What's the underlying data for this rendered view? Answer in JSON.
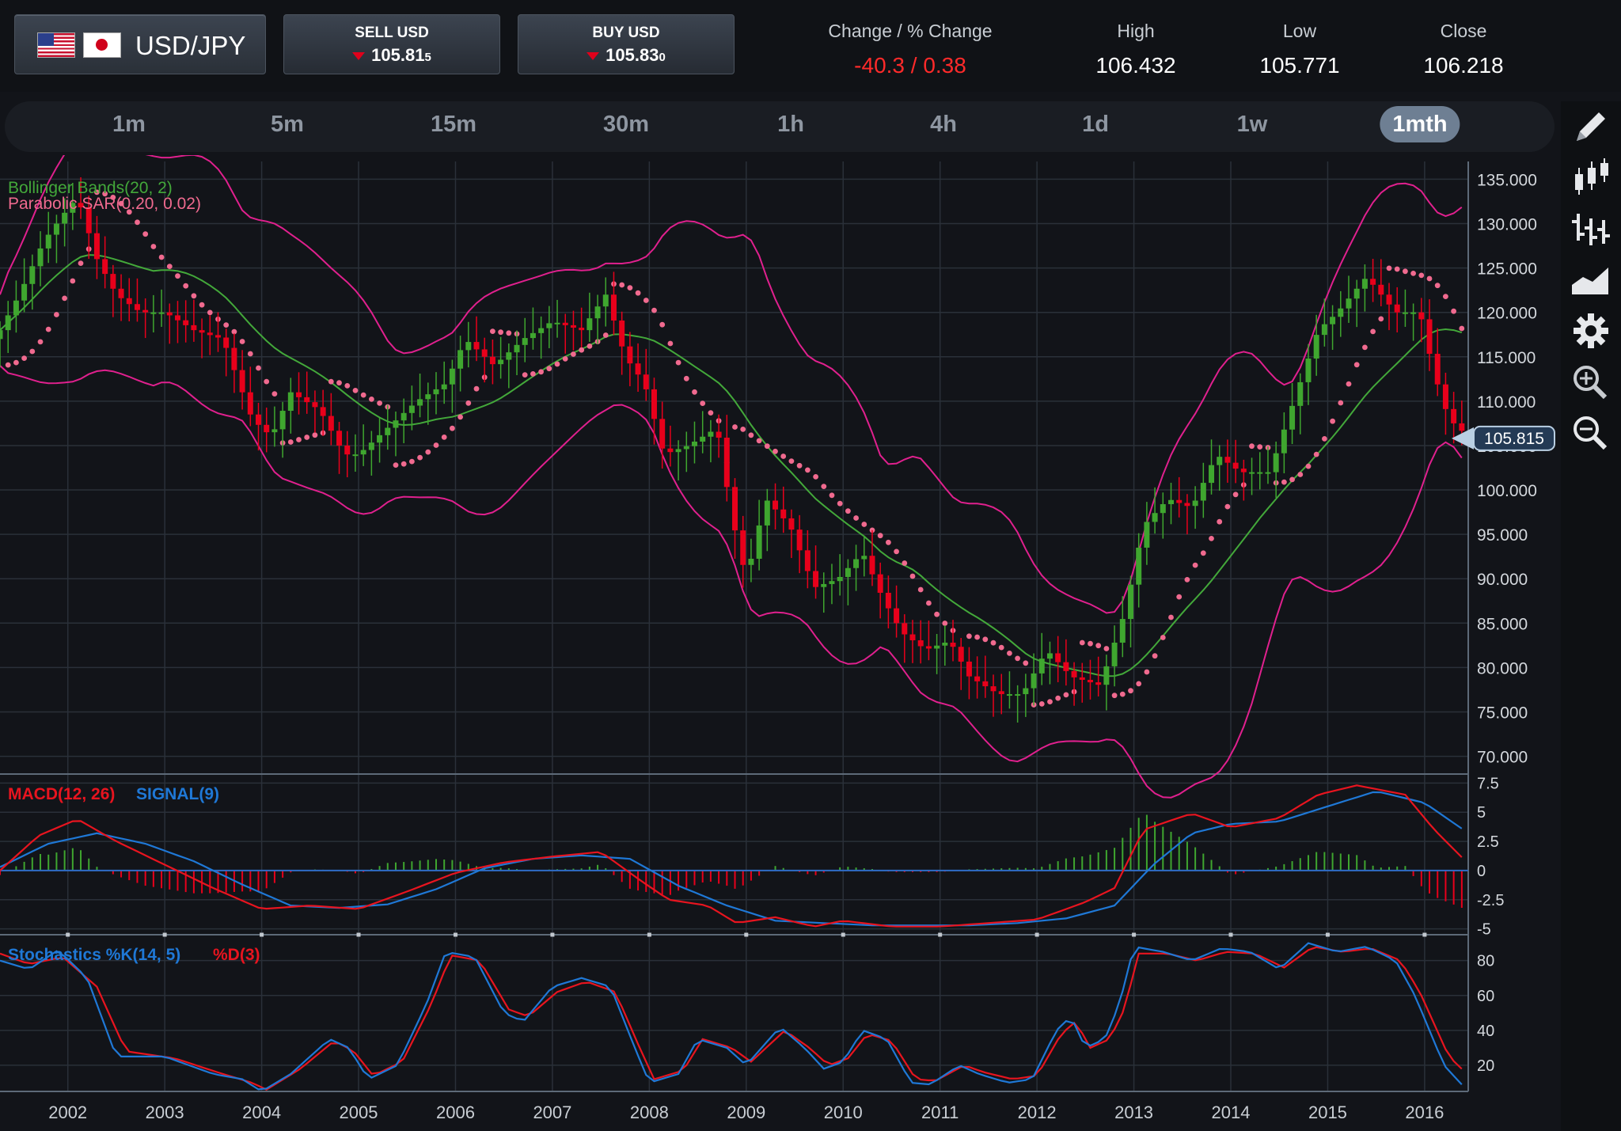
{
  "header": {
    "pair": "USD/JPY",
    "sell_title": "SELL USD",
    "sell_price_main": "105.81",
    "sell_price_small": "5",
    "buy_title": "BUY USD",
    "buy_price_main": "105.83",
    "buy_price_small": "0",
    "change_label": "Change / % Change",
    "change_value": "-40.3 / 0.38",
    "high_label": "High",
    "high_value": "106.432",
    "low_label": "Low",
    "low_value": "105.771",
    "close_label": "Close",
    "close_value": "106.218"
  },
  "timeframes": [
    "1m",
    "5m",
    "15m",
    "30m",
    "1h",
    "4h",
    "1d",
    "1w",
    "1mth"
  ],
  "active_timeframe": "1mth",
  "tools": [
    "pencil-icon",
    "candlestick-icon",
    "ohlc-bars-icon",
    "area-chart-icon",
    "gear-icon",
    "zoom-in-icon",
    "zoom-out-icon"
  ],
  "colors": {
    "up": "#3fa62f",
    "down": "#e8001b",
    "bb_outer": "#e0208e",
    "bb_mid": "#43a83a",
    "sar": "#f06a8f",
    "macd": "#e8141f",
    "signal": "#1f78d6",
    "price_tag": "#b9cfe3"
  },
  "chart_data": [
    {
      "type": "candlestick",
      "indicators": [
        "Bollinger Bands(20, 2)",
        "Parabolic SAR(0.20, 0.02)"
      ],
      "y_ticks": [
        "135.000",
        "130.000",
        "125.000",
        "120.000",
        "115.000",
        "110.000",
        "105.000",
        "100.000",
        "95.000",
        "90.000",
        "85.000",
        "80.000",
        "75.000",
        "70.000"
      ],
      "ylim": [
        68,
        137
      ],
      "current_price": "105.815",
      "x_ticks": [
        "2002",
        "2003",
        "2004",
        "2005",
        "2006",
        "2007",
        "2008",
        "2009",
        "2010",
        "2011",
        "2012",
        "2013",
        "2014",
        "2015",
        "2016"
      ],
      "x_range": [
        2001.3,
        2016.45
      ],
      "close_anchors": [
        [
          2001.3,
          118
        ],
        [
          2001.5,
          122
        ],
        [
          2001.75,
          128
        ],
        [
          2001.95,
          131
        ],
        [
          2002.1,
          133
        ],
        [
          2002.3,
          126
        ],
        [
          2002.5,
          122
        ],
        [
          2002.75,
          120
        ],
        [
          2003.0,
          120
        ],
        [
          2003.3,
          118
        ],
        [
          2003.6,
          117
        ],
        [
          2003.9,
          108
        ],
        [
          2004.1,
          106
        ],
        [
          2004.3,
          111
        ],
        [
          2004.6,
          109
        ],
        [
          2004.85,
          104
        ],
        [
          2005.0,
          104
        ],
        [
          2005.3,
          107
        ],
        [
          2005.6,
          110
        ],
        [
          2005.9,
          112
        ],
        [
          2006.1,
          117
        ],
        [
          2006.4,
          114
        ],
        [
          2006.7,
          117
        ],
        [
          2007.0,
          119
        ],
        [
          2007.3,
          118
        ],
        [
          2007.55,
          122
        ],
        [
          2007.75,
          115
        ],
        [
          2007.95,
          112
        ],
        [
          2008.15,
          104
        ],
        [
          2008.4,
          105
        ],
        [
          2008.7,
          107
        ],
        [
          2008.85,
          97
        ],
        [
          2009.0,
          90
        ],
        [
          2009.2,
          99
        ],
        [
          2009.45,
          96
        ],
        [
          2009.7,
          89
        ],
        [
          2009.95,
          90
        ],
        [
          2010.2,
          93
        ],
        [
          2010.4,
          88
        ],
        [
          2010.6,
          84
        ],
        [
          2010.85,
          82
        ],
        [
          2011.1,
          83
        ],
        [
          2011.3,
          79
        ],
        [
          2011.6,
          77
        ],
        [
          2011.85,
          77
        ],
        [
          2012.1,
          82
        ],
        [
          2012.35,
          79
        ],
        [
          2012.65,
          78
        ],
        [
          2012.9,
          86
        ],
        [
          2013.1,
          96
        ],
        [
          2013.35,
          99
        ],
        [
          2013.6,
          98
        ],
        [
          2013.85,
          104
        ],
        [
          2014.1,
          102
        ],
        [
          2014.4,
          102
        ],
        [
          2014.65,
          110
        ],
        [
          2014.9,
          118
        ],
        [
          2015.1,
          120
        ],
        [
          2015.4,
          124
        ],
        [
          2015.7,
          120
        ],
        [
          2015.95,
          120
        ],
        [
          2016.1,
          113
        ],
        [
          2016.25,
          108
        ],
        [
          2016.45,
          106
        ]
      ]
    },
    {
      "type": "line",
      "title": "MACD(12, 26) SIGNAL(9)",
      "y_ticks": [
        "7.5",
        "5",
        "2.5",
        "0",
        "-2.5",
        "-5"
      ],
      "ylim": [
        -5.5,
        8
      ],
      "series": [
        {
          "name": "MACD(12, 26)",
          "anchors": [
            [
              2001.3,
              0
            ],
            [
              2001.7,
              3
            ],
            [
              2002.1,
              4.4
            ],
            [
              2002.5,
              2.5
            ],
            [
              2003.0,
              0.5
            ],
            [
              2003.5,
              -1.5
            ],
            [
              2004.0,
              -3.3
            ],
            [
              2004.5,
              -3.0
            ],
            [
              2005.0,
              -3.3
            ],
            [
              2005.5,
              -1.8
            ],
            [
              2006.0,
              -0.2
            ],
            [
              2006.5,
              0.7
            ],
            [
              2007.0,
              1.2
            ],
            [
              2007.5,
              1.6
            ],
            [
              2007.9,
              -0.8
            ],
            [
              2008.2,
              -2.5
            ],
            [
              2008.6,
              -3.0
            ],
            [
              2008.9,
              -4.5
            ],
            [
              2009.3,
              -4.0
            ],
            [
              2009.7,
              -4.8
            ],
            [
              2010.0,
              -4.3
            ],
            [
              2010.5,
              -4.8
            ],
            [
              2011.0,
              -4.8
            ],
            [
              2011.5,
              -4.5
            ],
            [
              2012.0,
              -4.2
            ],
            [
              2012.5,
              -2.7
            ],
            [
              2012.8,
              -1.5
            ],
            [
              2013.1,
              3.5
            ],
            [
              2013.6,
              4.9
            ],
            [
              2014.0,
              3.7
            ],
            [
              2014.5,
              4.5
            ],
            [
              2014.9,
              6.5
            ],
            [
              2015.3,
              7.3
            ],
            [
              2015.8,
              6.5
            ],
            [
              2016.1,
              3.5
            ],
            [
              2016.4,
              1.0
            ]
          ]
        },
        {
          "name": "SIGNAL(9)",
          "anchors": [
            [
              2001.3,
              0.3
            ],
            [
              2001.8,
              2.3
            ],
            [
              2002.3,
              3.2
            ],
            [
              2002.8,
              2.3
            ],
            [
              2003.3,
              0.8
            ],
            [
              2003.8,
              -1.2
            ],
            [
              2004.3,
              -3.0
            ],
            [
              2004.8,
              -3.2
            ],
            [
              2005.3,
              -2.9
            ],
            [
              2005.8,
              -1.6
            ],
            [
              2006.3,
              0.2
            ],
            [
              2006.8,
              1.0
            ],
            [
              2007.3,
              1.3
            ],
            [
              2007.8,
              1.0
            ],
            [
              2008.3,
              -1.3
            ],
            [
              2008.8,
              -3.0
            ],
            [
              2009.3,
              -4.3
            ],
            [
              2009.8,
              -4.5
            ],
            [
              2010.3,
              -4.7
            ],
            [
              2010.8,
              -4.7
            ],
            [
              2011.3,
              -4.7
            ],
            [
              2011.8,
              -4.5
            ],
            [
              2012.3,
              -4.1
            ],
            [
              2012.8,
              -3.0
            ],
            [
              2013.2,
              0.5
            ],
            [
              2013.6,
              3.2
            ],
            [
              2014.0,
              4.0
            ],
            [
              2014.5,
              4.2
            ],
            [
              2015.0,
              5.5
            ],
            [
              2015.5,
              6.8
            ],
            [
              2016.0,
              5.8
            ],
            [
              2016.4,
              3.5
            ]
          ]
        }
      ]
    },
    {
      "type": "line",
      "title": "Stochastics %K(14, 5) %D(3)",
      "y_ticks": [
        "80",
        "60",
        "40",
        "20"
      ],
      "ylim": [
        5,
        93
      ],
      "series": [
        {
          "name": "%K(14, 5)",
          "anchors": [
            [
              2001.3,
              80
            ],
            [
              2001.6,
              75
            ],
            [
              2001.9,
              86
            ],
            [
              2002.2,
              70
            ],
            [
              2002.5,
              25
            ],
            [
              2003.0,
              25
            ],
            [
              2003.5,
              15
            ],
            [
              2003.8,
              12
            ],
            [
              2004.0,
              5
            ],
            [
              2004.3,
              15
            ],
            [
              2004.7,
              35
            ],
            [
              2004.9,
              30
            ],
            [
              2005.1,
              12
            ],
            [
              2005.4,
              20
            ],
            [
              2005.7,
              55
            ],
            [
              2005.9,
              85
            ],
            [
              2006.2,
              82
            ],
            [
              2006.5,
              50
            ],
            [
              2006.7,
              45
            ],
            [
              2007.0,
              65
            ],
            [
              2007.3,
              70
            ],
            [
              2007.6,
              65
            ],
            [
              2007.85,
              30
            ],
            [
              2008.0,
              10
            ],
            [
              2008.3,
              15
            ],
            [
              2008.5,
              35
            ],
            [
              2008.8,
              30
            ],
            [
              2009.0,
              20
            ],
            [
              2009.35,
              42
            ],
            [
              2009.6,
              30
            ],
            [
              2009.8,
              18
            ],
            [
              2010.0,
              22
            ],
            [
              2010.2,
              40
            ],
            [
              2010.45,
              35
            ],
            [
              2010.7,
              10
            ],
            [
              2010.9,
              9
            ],
            [
              2011.2,
              20
            ],
            [
              2011.4,
              15
            ],
            [
              2011.7,
              10
            ],
            [
              2011.95,
              12
            ],
            [
              2012.2,
              40
            ],
            [
              2012.35,
              48
            ],
            [
              2012.5,
              30
            ],
            [
              2012.7,
              35
            ],
            [
              2012.85,
              55
            ],
            [
              2013.0,
              88
            ],
            [
              2013.3,
              85
            ],
            [
              2013.6,
              80
            ],
            [
              2013.9,
              87
            ],
            [
              2014.2,
              85
            ],
            [
              2014.5,
              75
            ],
            [
              2014.8,
              90
            ],
            [
              2015.1,
              85
            ],
            [
              2015.4,
              88
            ],
            [
              2015.7,
              80
            ],
            [
              2015.9,
              60
            ],
            [
              2016.2,
              20
            ],
            [
              2016.4,
              8
            ]
          ]
        },
        {
          "name": "%D(3)",
          "anchors": [
            [
              2001.3,
              84
            ],
            [
              2001.6,
              78
            ],
            [
              2001.95,
              82
            ],
            [
              2002.3,
              65
            ],
            [
              2002.6,
              28
            ],
            [
              2003.1,
              24
            ],
            [
              2003.6,
              15
            ],
            [
              2003.9,
              10
            ],
            [
              2004.05,
              6
            ],
            [
              2004.4,
              18
            ],
            [
              2004.75,
              34
            ],
            [
              2004.95,
              28
            ],
            [
              2005.15,
              14
            ],
            [
              2005.45,
              22
            ],
            [
              2005.75,
              55
            ],
            [
              2005.95,
              83
            ],
            [
              2006.25,
              80
            ],
            [
              2006.55,
              52
            ],
            [
              2006.75,
              48
            ],
            [
              2007.05,
              62
            ],
            [
              2007.35,
              68
            ],
            [
              2007.65,
              62
            ],
            [
              2007.9,
              30
            ],
            [
              2008.05,
              12
            ],
            [
              2008.35,
              17
            ],
            [
              2008.55,
              35
            ],
            [
              2008.85,
              30
            ],
            [
              2009.05,
              22
            ],
            [
              2009.4,
              40
            ],
            [
              2009.65,
              30
            ],
            [
              2009.85,
              20
            ],
            [
              2010.05,
              24
            ],
            [
              2010.25,
              38
            ],
            [
              2010.5,
              34
            ],
            [
              2010.75,
              12
            ],
            [
              2010.95,
              11
            ],
            [
              2011.25,
              20
            ],
            [
              2011.45,
              16
            ],
            [
              2011.75,
              12
            ],
            [
              2012.0,
              14
            ],
            [
              2012.25,
              38
            ],
            [
              2012.4,
              45
            ],
            [
              2012.55,
              30
            ],
            [
              2012.75,
              35
            ],
            [
              2012.9,
              52
            ],
            [
              2013.05,
              84
            ],
            [
              2013.35,
              84
            ],
            [
              2013.65,
              80
            ],
            [
              2013.95,
              85
            ],
            [
              2014.25,
              84
            ],
            [
              2014.55,
              76
            ],
            [
              2014.85,
              88
            ],
            [
              2015.15,
              85
            ],
            [
              2015.45,
              87
            ],
            [
              2015.75,
              80
            ],
            [
              2015.95,
              62
            ],
            [
              2016.25,
              25
            ],
            [
              2016.42,
              16
            ]
          ]
        }
      ]
    }
  ]
}
